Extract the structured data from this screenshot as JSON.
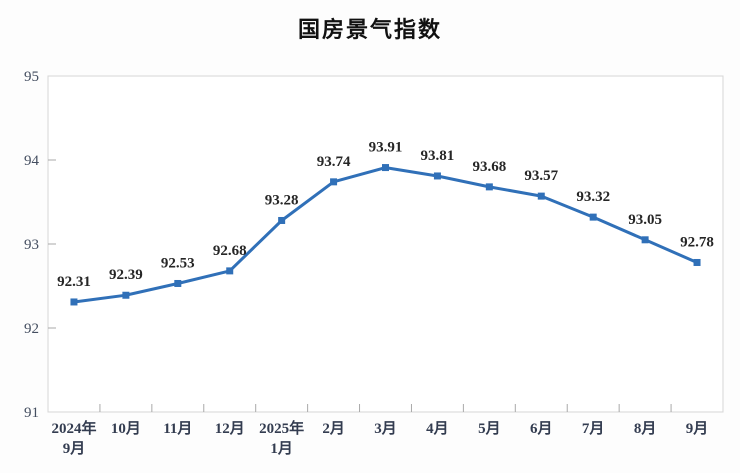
{
  "chart": {
    "title": "国房景气指数"
  },
  "chart_data": {
    "type": "line",
    "title": "国房景气指数",
    "categories": [
      "2024年|9月",
      "10月",
      "11月",
      "12月",
      "2025年|1月",
      "2月",
      "3月",
      "4月",
      "5月",
      "6月",
      "7月",
      "8月",
      "9月"
    ],
    "values": [
      92.31,
      92.39,
      92.53,
      92.68,
      93.28,
      93.74,
      93.91,
      93.81,
      93.68,
      93.57,
      93.32,
      93.05,
      92.78
    ],
    "data_labels": [
      "92.31",
      "92.39",
      "92.53",
      "92.68",
      "93.28",
      "93.74",
      "93.91",
      "93.81",
      "93.68",
      "93.57",
      "93.32",
      "93.05",
      "92.78"
    ],
    "xlabel": "",
    "ylabel": "",
    "ylim": [
      91,
      95
    ],
    "y_ticks": [
      91,
      92,
      93,
      94,
      95
    ],
    "grid": false,
    "legend_position": "none",
    "marker": "square",
    "colors": {
      "line": "#3070b8",
      "marker": "#3070b8",
      "data_label": "#262626",
      "y_axis_label": "#444e60",
      "x_axis_label": "#333c50",
      "plot_border": "#d6d6d6",
      "tick": "#a9a9a9",
      "plot_background": "#ffffff",
      "page_background": "#fdfdfd",
      "title": "#111111"
    }
  }
}
